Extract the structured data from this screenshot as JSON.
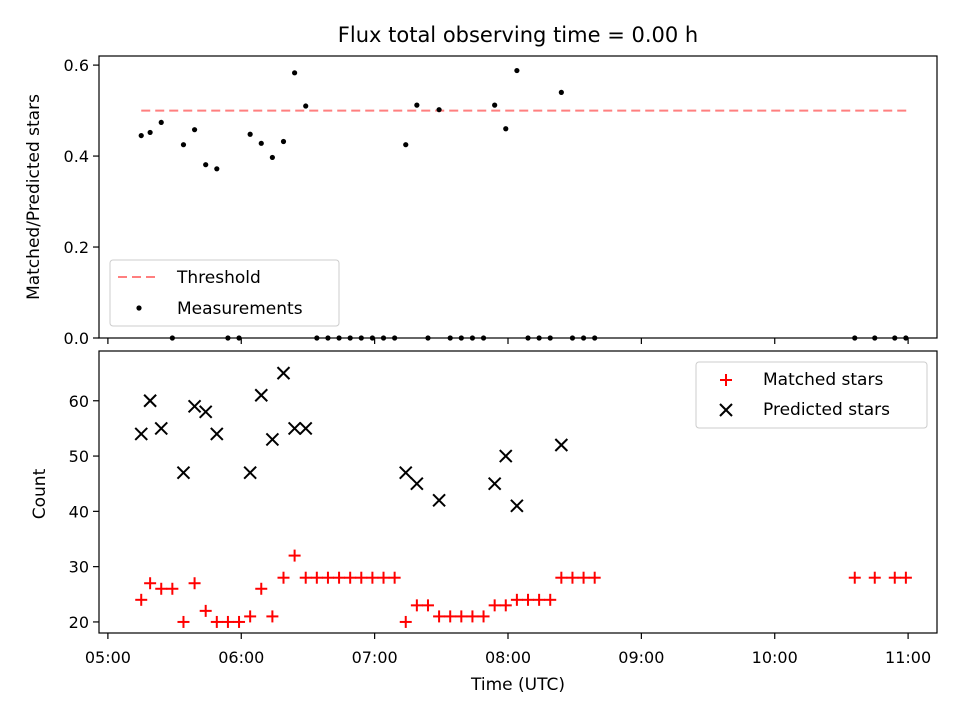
{
  "chart_data": [
    {
      "type": "scatter",
      "title": "Flux total observing time = 0.00 h",
      "xlabel": "",
      "ylabel": "Matched/Predicted stars",
      "ylim": [
        0,
        0.62
      ],
      "yticks": [
        "0.0",
        "0.2",
        "0.4",
        "0.6"
      ],
      "legend_position": "lower-left",
      "threshold": {
        "name": "Threshold",
        "value": 0.5,
        "x_start": "05:15",
        "x_end": "11:00",
        "color": "#ff7f7f"
      },
      "series": [
        {
          "name": "Measurements",
          "color": "#000000",
          "x": [
            "05:15",
            "05:19",
            "05:24",
            "05:29",
            "05:34",
            "05:39",
            "05:44",
            "05:49",
            "05:54",
            "05:59",
            "06:04",
            "06:09",
            "06:14",
            "06:19",
            "06:24",
            "06:29",
            "06:34",
            "06:39",
            "06:44",
            "06:49",
            "06:54",
            "06:59",
            "07:04",
            "07:09",
            "07:14",
            "07:19",
            "07:24",
            "07:29",
            "07:34",
            "07:39",
            "07:44",
            "07:49",
            "07:54",
            "07:59",
            "08:04",
            "08:09",
            "08:14",
            "08:19",
            "08:24",
            "08:29",
            "08:34",
            "08:39",
            "10:36",
            "10:45",
            "10:54",
            "10:59"
          ],
          "y": [
            0.445,
            0.452,
            0.474,
            0.0,
            0.425,
            0.458,
            0.381,
            0.372,
            0.0,
            0.0,
            0.448,
            0.428,
            0.397,
            0.432,
            0.583,
            0.51,
            0.0,
            0.0,
            0.0,
            0.0,
            0.0,
            0.0,
            0.0,
            0.0,
            0.425,
            0.512,
            0.0,
            0.502,
            0.0,
            0.0,
            0.0,
            0.0,
            0.512,
            0.46,
            0.588,
            0.0,
            0.0,
            0.0,
            0.54,
            0.0,
            0.0,
            0.0,
            0.0,
            0.0,
            0.0,
            0.0
          ]
        }
      ]
    },
    {
      "type": "scatter",
      "title": "",
      "xlabel": "Time (UTC)",
      "ylabel": "Count",
      "ylim": [
        18,
        69
      ],
      "yticks": [
        "20",
        "30",
        "40",
        "50",
        "60"
      ],
      "xticks": [
        "05:00",
        "06:00",
        "07:00",
        "08:00",
        "09:00",
        "10:00",
        "11:00"
      ],
      "legend_position": "upper-right",
      "series": [
        {
          "name": "Matched stars",
          "color": "#ff0000",
          "marker": "plus",
          "x": [
            "05:15",
            "05:19",
            "05:24",
            "05:29",
            "05:34",
            "05:39",
            "05:44",
            "05:49",
            "05:54",
            "05:59",
            "06:04",
            "06:09",
            "06:14",
            "06:19",
            "06:24",
            "06:29",
            "06:34",
            "06:39",
            "06:44",
            "06:49",
            "06:54",
            "06:59",
            "07:04",
            "07:09",
            "07:14",
            "07:19",
            "07:24",
            "07:29",
            "07:34",
            "07:39",
            "07:44",
            "07:49",
            "07:54",
            "07:59",
            "08:04",
            "08:09",
            "08:14",
            "08:19",
            "08:24",
            "08:29",
            "08:34",
            "08:39",
            "10:36",
            "10:45",
            "10:54",
            "10:59"
          ],
          "y": [
            24,
            27,
            26,
            26,
            20,
            27,
            22,
            20,
            20,
            20,
            21,
            26,
            21,
            28,
            32,
            28,
            28,
            28,
            28,
            28,
            28,
            28,
            28,
            28,
            20,
            23,
            23,
            21,
            21,
            21,
            21,
            21,
            23,
            23,
            24,
            24,
            24,
            24,
            28,
            28,
            28,
            28,
            28,
            28,
            28,
            28
          ]
        },
        {
          "name": "Predicted stars",
          "color": "#000000",
          "marker": "x",
          "x": [
            "05:15",
            "05:19",
            "05:24",
            "05:34",
            "05:39",
            "05:44",
            "05:49",
            "06:04",
            "06:09",
            "06:14",
            "06:19",
            "06:24",
            "06:29",
            "07:14",
            "07:19",
            "07:29",
            "07:54",
            "07:59",
            "08:04",
            "08:24"
          ],
          "y": [
            54,
            60,
            55,
            47,
            59,
            58,
            54,
            47,
            61,
            53,
            65,
            55,
            55,
            47,
            45,
            42,
            45,
            50,
            41,
            52
          ]
        }
      ]
    }
  ]
}
